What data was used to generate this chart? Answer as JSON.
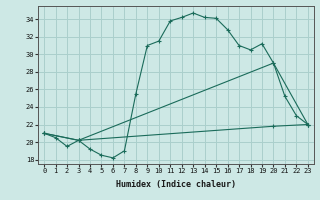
{
  "xlabel": "Humidex (Indice chaleur)",
  "ylabel": "",
  "xlim": [
    -0.5,
    23.5
  ],
  "ylim": [
    17.5,
    35.5
  ],
  "xticks": [
    0,
    1,
    2,
    3,
    4,
    5,
    6,
    7,
    8,
    9,
    10,
    11,
    12,
    13,
    14,
    15,
    16,
    17,
    18,
    19,
    20,
    21,
    22,
    23
  ],
  "yticks": [
    18,
    20,
    22,
    24,
    26,
    28,
    30,
    32,
    34
  ],
  "bg_color": "#cde8e5",
  "grid_color": "#aacfcc",
  "line_color": "#1a6b5a",
  "curve1_x": [
    0,
    1,
    2,
    3,
    4,
    5,
    6,
    7,
    8,
    9,
    10,
    11,
    12,
    13,
    14,
    15,
    16,
    17,
    18,
    19,
    20,
    21,
    22,
    23
  ],
  "curve1_y": [
    21.0,
    20.5,
    19.5,
    20.2,
    19.2,
    18.5,
    18.2,
    19.0,
    25.5,
    31.0,
    31.5,
    33.8,
    34.2,
    34.7,
    34.2,
    34.1,
    32.8,
    31.0,
    30.5,
    31.2,
    29.0,
    25.2,
    23.0,
    22.0
  ],
  "curve2_x": [
    0,
    3,
    20,
    23
  ],
  "curve2_y": [
    21.0,
    20.2,
    29.0,
    22.0
  ],
  "curve3_x": [
    0,
    3,
    20,
    23
  ],
  "curve3_y": [
    21.0,
    20.2,
    21.8,
    22.0
  ]
}
